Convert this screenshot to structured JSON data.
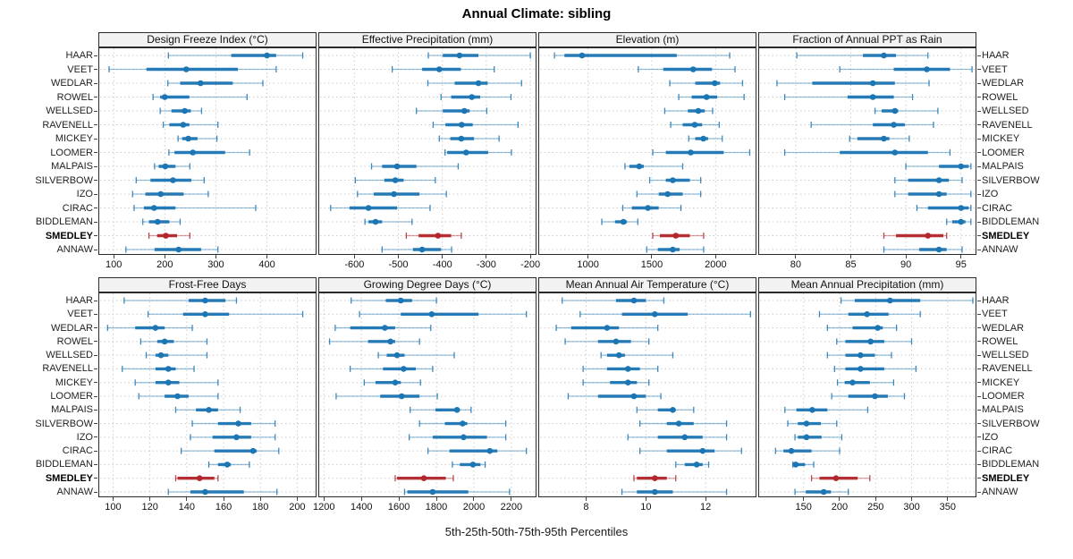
{
  "title": "Annual Climate: sibling",
  "footer_caption": "5th-25th-50th-75th-95th Percentiles",
  "percentile_labels": [
    "5th",
    "25th",
    "50th",
    "75th",
    "95th"
  ],
  "sites": [
    "HAAR",
    "VEET",
    "WEDLAR",
    "ROWEL",
    "WELLSED",
    "RAVENELL",
    "MICKEY",
    "LOOMER",
    "MALPAIS",
    "SILVERBOW",
    "IZO",
    "CIRAC",
    "BIDDLEMAN",
    "SMEDLEY",
    "ANNAW"
  ],
  "highlight_site": "SMEDLEY",
  "colors": {
    "series": "#1d76b4",
    "highlight": "#b3272c",
    "grid": "#cccccc",
    "panel_border": "#2b2b2b",
    "strip_bg": "#f2f2f2",
    "text": "#1a1a1a"
  },
  "chart_data": [
    {
      "type": "dotplot",
      "panel": "Design Freeze Index (°C)",
      "grid_row": 0,
      "grid_col": 0,
      "xlim": [
        70,
        497
      ],
      "ticks": [
        100,
        200,
        300,
        400
      ],
      "values": [
        [
          207,
          330,
          400,
          418,
          470
        ],
        [
          91,
          164,
          242,
          343,
          418
        ],
        [
          206,
          230,
          270,
          333,
          392
        ],
        [
          177,
          191,
          200,
          248,
          361
        ],
        [
          191,
          213,
          239,
          251,
          272
        ],
        [
          197,
          209,
          236,
          248,
          304
        ],
        [
          226,
          234,
          246,
          264,
          302
        ],
        [
          208,
          219,
          255,
          318,
          366
        ],
        [
          180,
          188,
          201,
          221,
          249
        ],
        [
          144,
          172,
          216,
          252,
          277
        ],
        [
          137,
          162,
          192,
          237,
          285
        ],
        [
          140,
          159,
          179,
          221,
          378
        ],
        [
          157,
          169,
          186,
          209,
          230
        ],
        [
          169,
          185,
          202,
          224,
          249
        ],
        [
          124,
          180,
          227,
          271,
          304
        ]
      ]
    },
    {
      "type": "dotplot",
      "panel": "Effective Precipitation (mm)",
      "grid_row": 0,
      "grid_col": 1,
      "xlim": [
        -682,
        -186
      ],
      "ticks": [
        -600,
        -500,
        -400,
        -300,
        -200
      ],
      "values": [
        [
          -432,
          -399,
          -361,
          -318,
          -200
        ],
        [
          -514,
          -446,
          -407,
          -358,
          -282
        ],
        [
          -433,
          -372,
          -318,
          -297,
          -220
        ],
        [
          -403,
          -380,
          -333,
          -314,
          -244
        ],
        [
          -459,
          -399,
          -350,
          -338,
          -299
        ],
        [
          -421,
          -393,
          -356,
          -331,
          -228
        ],
        [
          -407,
          -382,
          -357,
          -328,
          -271
        ],
        [
          -394,
          -389,
          -346,
          -296,
          -243
        ],
        [
          -561,
          -537,
          -503,
          -459,
          -364
        ],
        [
          -598,
          -532,
          -507,
          -488,
          -416
        ],
        [
          -593,
          -556,
          -510,
          -452,
          -391
        ],
        [
          -654,
          -611,
          -568,
          -503,
          -428
        ],
        [
          -576,
          -568,
          -552,
          -537,
          -469
        ],
        [
          -482,
          -454,
          -410,
          -380,
          -357
        ],
        [
          -537,
          -467,
          -446,
          -403,
          -379
        ]
      ]
    },
    {
      "type": "dotplot",
      "panel": "Elevation (m)",
      "grid_row": 0,
      "grid_col": 2,
      "xlim": [
        610,
        2320
      ],
      "ticks": [
        1000,
        1500,
        2000
      ],
      "values": [
        [
          737,
          815,
          953,
          1695,
          2110
        ],
        [
          1394,
          1589,
          1824,
          1972,
          2152
        ],
        [
          1641,
          1840,
          1993,
          2035,
          2211
        ],
        [
          1711,
          1812,
          1929,
          2012,
          2223
        ],
        [
          1601,
          1782,
          1864,
          1915,
          1976
        ],
        [
          1648,
          1742,
          1836,
          1894,
          2028
        ],
        [
          1789,
          1840,
          1904,
          1941,
          2052
        ],
        [
          1507,
          1610,
          1805,
          2063,
          2267
        ],
        [
          1289,
          1324,
          1401,
          1437,
          1742
        ],
        [
          1483,
          1610,
          1664,
          1798,
          1883
        ],
        [
          1383,
          1554,
          1624,
          1742,
          1883
        ],
        [
          1272,
          1343,
          1469,
          1554,
          1728
        ],
        [
          1108,
          1211,
          1277,
          1305,
          1390
        ],
        [
          1507,
          1563,
          1688,
          1798,
          1906
        ],
        [
          1460,
          1547,
          1664,
          1718,
          1906
        ]
      ]
    },
    {
      "type": "dotplot",
      "panel": "Fraction of Annual PPT as Rain",
      "grid_row": 0,
      "grid_col": 3,
      "xlim": [
        76.6,
        96.4
      ],
      "ticks": [
        80,
        85,
        90,
        95
      ],
      "values": [
        [
          80.1,
          86.1,
          88,
          89.1,
          92
        ],
        [
          84,
          88.9,
          91.9,
          94,
          96
        ],
        [
          78.3,
          81.5,
          87,
          89,
          92.1
        ],
        [
          79,
          84.7,
          87,
          88.9,
          90.6
        ],
        [
          87.2,
          87.8,
          89,
          89.3,
          92.9
        ],
        [
          81.4,
          87,
          88.9,
          89.9,
          92.5
        ],
        [
          84.9,
          85.6,
          88,
          88.5,
          90.3
        ],
        [
          79,
          84,
          89,
          92,
          94
        ],
        [
          90,
          93,
          95,
          95.7,
          95.9
        ],
        [
          89,
          90.2,
          93,
          93.9,
          95.1
        ],
        [
          89,
          90.2,
          93,
          93.7,
          95.9
        ],
        [
          91,
          92,
          95,
          95.7,
          95.9
        ],
        [
          93.7,
          94.2,
          95,
          95.4,
          95.9
        ],
        [
          88,
          89.1,
          92,
          93.4,
          93.7
        ],
        [
          88,
          91.2,
          93,
          93.7,
          95.1
        ]
      ]
    },
    {
      "type": "dotplot",
      "panel": "Frost-Free Days",
      "grid_row": 1,
      "grid_col": 0,
      "xlim": [
        92,
        210.5
      ],
      "ticks": [
        100,
        120,
        140,
        160,
        180,
        200
      ],
      "values": [
        [
          106,
          141,
          150,
          161,
          167
        ],
        [
          119,
          138,
          150,
          163,
          203
        ],
        [
          97,
          112,
          123,
          128,
          143
        ],
        [
          115,
          124,
          128,
          133,
          151
        ],
        [
          118,
          123,
          126,
          130,
          151
        ],
        [
          105,
          123,
          130,
          134,
          144
        ],
        [
          112,
          123,
          130,
          136,
          157
        ],
        [
          114,
          128,
          135,
          141,
          157
        ],
        [
          134,
          145,
          152,
          157,
          169
        ],
        [
          143,
          157,
          168,
          175,
          188
        ],
        [
          142,
          154,
          167,
          175,
          188
        ],
        [
          137,
          155,
          176,
          178,
          190
        ],
        [
          152,
          157,
          162,
          164,
          174
        ],
        [
          134,
          135,
          147,
          155,
          157
        ],
        [
          130,
          142,
          150,
          171,
          189
        ]
      ]
    },
    {
      "type": "dotplot",
      "panel": "Growing Degree Days (°C)",
      "grid_row": 1,
      "grid_col": 1,
      "xlim": [
        1170,
        2334
      ],
      "ticks": [
        1200,
        1400,
        1600,
        1800,
        2000,
        2200
      ],
      "values": [
        [
          1345,
          1530,
          1610,
          1670,
          1800
        ],
        [
          1390,
          1610,
          1775,
          2025,
          2280
        ],
        [
          1260,
          1340,
          1525,
          1580,
          1770
        ],
        [
          1230,
          1435,
          1555,
          1580,
          1710
        ],
        [
          1490,
          1535,
          1590,
          1630,
          1895
        ],
        [
          1340,
          1515,
          1625,
          1690,
          1780
        ],
        [
          1415,
          1475,
          1580,
          1610,
          1715
        ],
        [
          1265,
          1500,
          1615,
          1710,
          1805
        ],
        [
          1660,
          1795,
          1910,
          1925,
          1985
        ],
        [
          1710,
          1845,
          1940,
          1965,
          2170
        ],
        [
          1655,
          1780,
          1945,
          2070,
          2170
        ],
        [
          1755,
          1870,
          2085,
          2125,
          2280
        ],
        [
          1885,
          1925,
          1995,
          2035,
          2060
        ],
        [
          1580,
          1590,
          1733,
          1850,
          1890
        ],
        [
          1630,
          1645,
          1780,
          1970,
          2190
        ]
      ]
    },
    {
      "type": "dotplot",
      "panel": "Mean Annual Air Temperature (°C)",
      "grid_row": 1,
      "grid_col": 2,
      "xlim": [
        6.4,
        13.7
      ],
      "ticks": [
        8,
        10,
        12
      ],
      "values": [
        [
          7.2,
          9.0,
          9.6,
          10.0,
          10.6
        ],
        [
          7.8,
          9.2,
          10.3,
          11.4,
          13.5
        ],
        [
          7.0,
          7.5,
          8.7,
          9.1,
          10.4
        ],
        [
          7.3,
          8.4,
          9.0,
          9.5,
          10.1
        ],
        [
          8.5,
          8.7,
          9.1,
          9.3,
          10.9
        ],
        [
          7.9,
          8.7,
          9.4,
          9.8,
          10.4
        ],
        [
          7.9,
          8.8,
          9.4,
          9.7,
          10.1
        ],
        [
          7.4,
          8.4,
          9.6,
          10.0,
          10.5
        ],
        [
          9.7,
          10.4,
          10.9,
          11.0,
          11.6
        ],
        [
          9.8,
          10.7,
          11.1,
          11.6,
          12.7
        ],
        [
          9.4,
          10.4,
          11.3,
          11.9,
          12.7
        ],
        [
          9.8,
          10.7,
          11.9,
          12.3,
          13.2
        ],
        [
          11.0,
          11.3,
          11.7,
          11.9,
          12.1
        ],
        [
          9.6,
          9.7,
          10.3,
          10.7,
          11.0
        ],
        [
          9.2,
          9.7,
          10.3,
          10.9,
          12.7
        ]
      ]
    },
    {
      "type": "dotplot",
      "panel": "Mean Annual Precipitation (mm)",
      "grid_row": 1,
      "grid_col": 3,
      "xlim": [
        87,
        390
      ],
      "ticks": [
        150,
        200,
        250,
        300,
        350
      ],
      "values": [
        [
          202,
          221,
          270,
          312,
          385
        ],
        [
          172,
          212,
          238,
          268,
          312
        ],
        [
          183,
          218,
          253,
          260,
          279
        ],
        [
          196,
          208,
          243,
          262,
          300
        ],
        [
          183,
          208,
          229,
          249,
          272
        ],
        [
          193,
          208,
          229,
          262,
          306
        ],
        [
          197,
          207,
          218,
          242,
          275
        ],
        [
          189,
          212,
          249,
          267,
          290
        ],
        [
          124,
          140,
          162,
          183,
          239
        ],
        [
          128,
          142,
          154,
          174,
          196
        ],
        [
          138,
          142,
          154,
          175,
          203
        ],
        [
          111,
          122,
          133,
          161,
          200
        ],
        [
          135,
          137,
          139,
          152,
          164
        ],
        [
          161,
          172,
          195,
          225,
          242
        ],
        [
          138,
          153,
          178,
          188,
          212
        ]
      ]
    }
  ]
}
